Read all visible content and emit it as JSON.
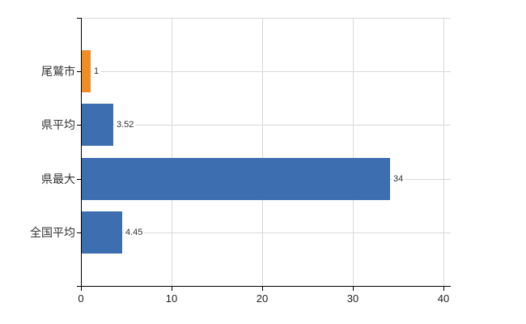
{
  "chart_data": {
    "type": "bar",
    "orientation": "horizontal",
    "title": "",
    "xlabel": "",
    "ylabel": "",
    "categories": [
      "尾鷲市",
      "県平均",
      "県最大",
      "全国平均"
    ],
    "values": [
      1,
      3.52,
      34,
      4.45
    ],
    "value_labels": [
      "1",
      "3.52",
      "34",
      "4.45"
    ],
    "bar_colors": [
      "#ee8c28",
      "#3c6eb0",
      "#3c6eb0",
      "#3c6eb0"
    ],
    "xlim": [
      0,
      40
    ],
    "x_ticks": [
      0,
      10,
      20,
      30,
      40
    ],
    "x_tick_labels": [
      "0",
      "10",
      "20",
      "30",
      "40"
    ],
    "grid": true,
    "legend": false,
    "colors": {
      "grid_line": "#d9d9d9",
      "axis_line": "#000000",
      "label_text": "#333333",
      "tick_text": "#222222",
      "background": "#ffffff"
    }
  }
}
